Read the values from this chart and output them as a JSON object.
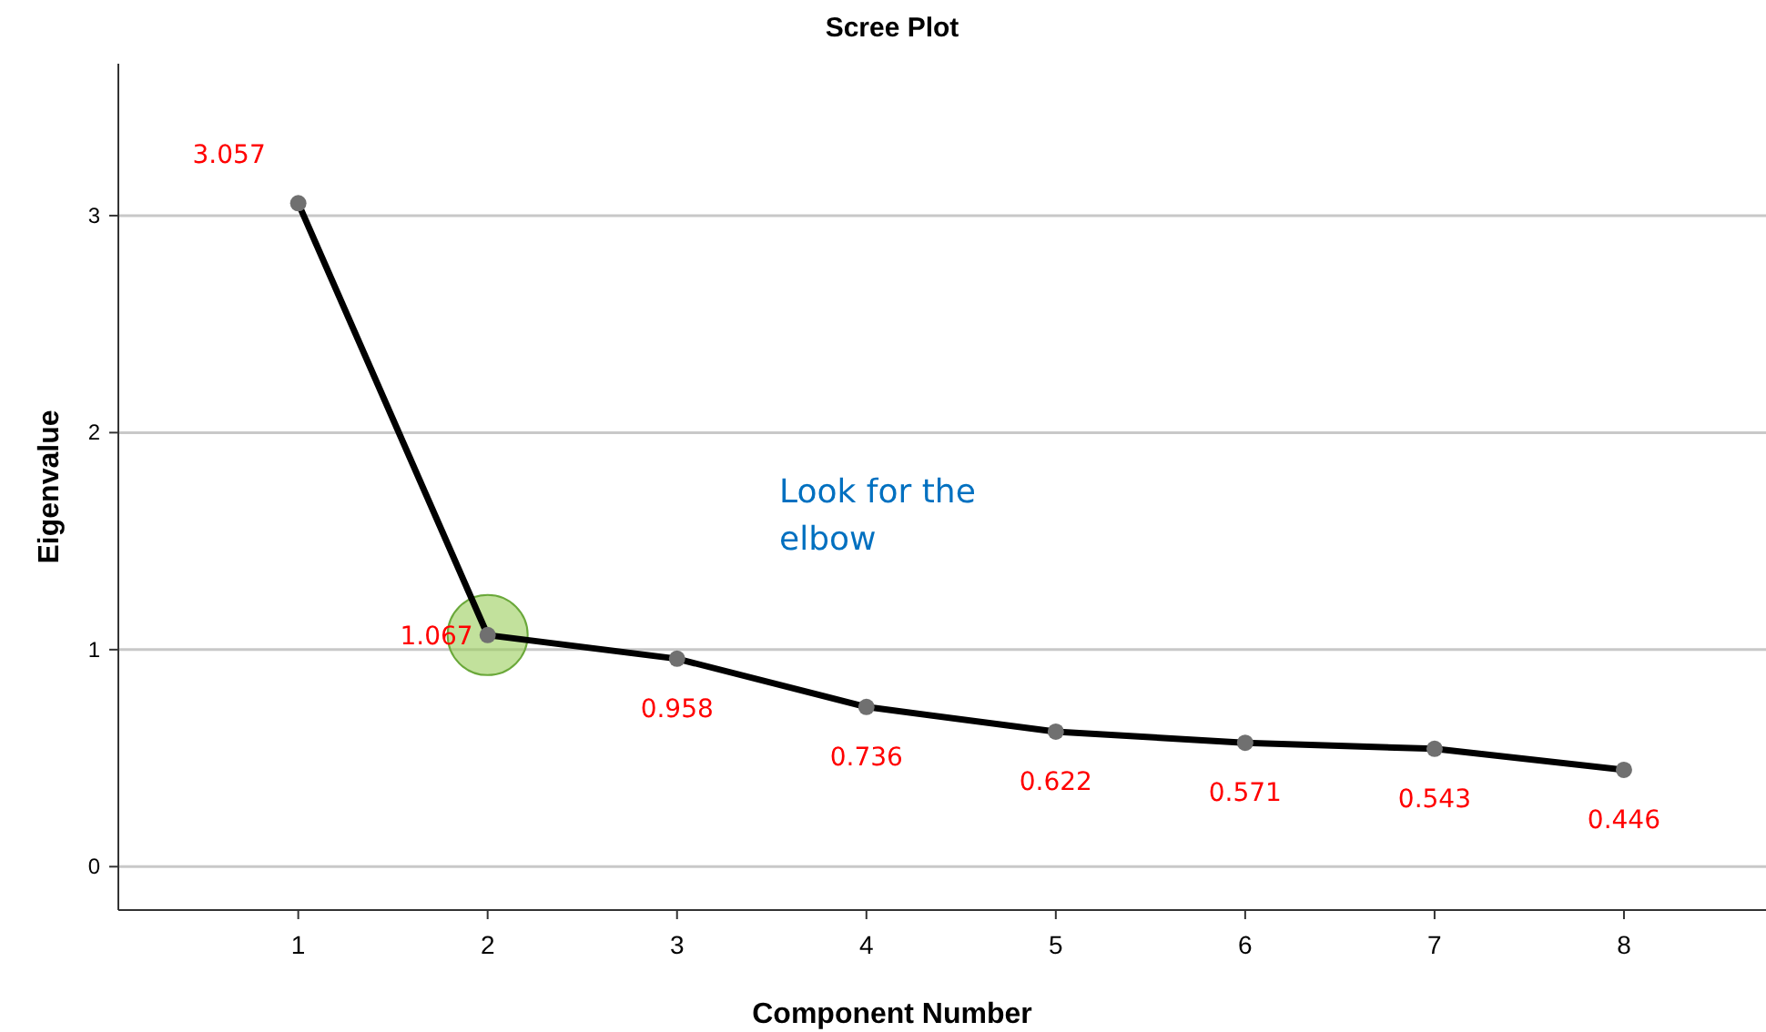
{
  "chart_data": {
    "type": "line",
    "title": "Scree Plot",
    "xlabel": "Component Number",
    "ylabel": "Eigenvalue",
    "x": [
      1,
      2,
      3,
      4,
      5,
      6,
      7,
      8
    ],
    "series": [
      {
        "color": "#000000",
        "values": [
          3.057,
          1.067,
          0.958,
          0.736,
          0.622,
          0.571,
          0.543,
          0.446
        ]
      }
    ],
    "xlim": [
      0.05,
      8.75
    ],
    "xticks": [
      1,
      2,
      3,
      4,
      5,
      6,
      7,
      8
    ],
    "ylim": [
      -0.2,
      3.7
    ],
    "yticks": [
      0,
      1,
      2,
      3
    ],
    "grid": "y",
    "marker": "circle",
    "line_style": "solid",
    "data_labels": true,
    "annotations": [
      "Look for the elbow"
    ]
  }
}
